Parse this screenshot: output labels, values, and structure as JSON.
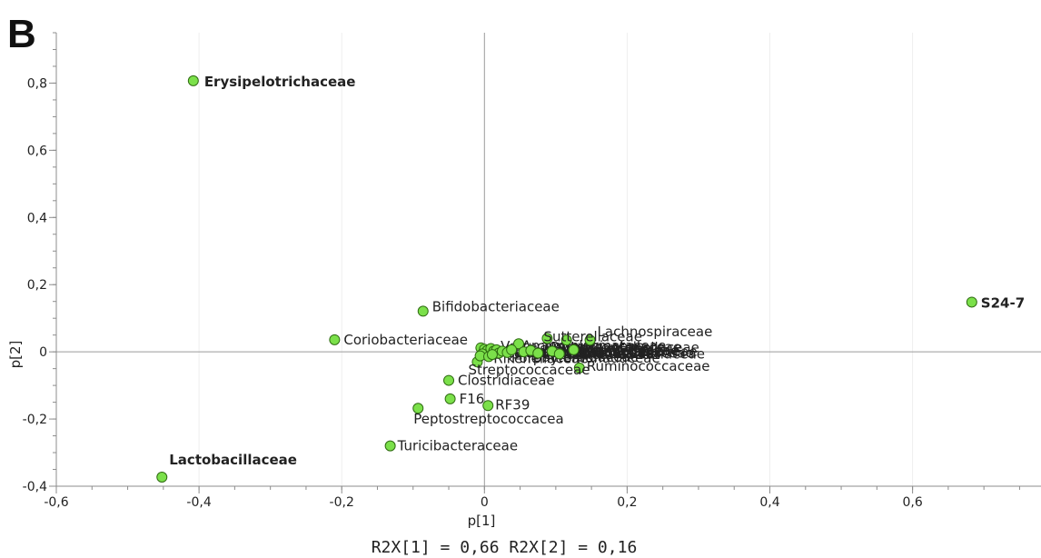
{
  "panel_label": "B",
  "footer": "R2X[1] = 0,66 R2X[2] = 0,16",
  "colors": {
    "point_fill": "#7be04a",
    "point_stroke": "#2f6b12"
  },
  "chart_data": {
    "type": "scatter",
    "title": "",
    "xlabel": "p[1]",
    "ylabel": "p[2]",
    "xlim": [
      -0.6,
      0.78
    ],
    "ylim": [
      -0.4,
      0.95
    ],
    "xticks": [
      -0.6,
      -0.4,
      -0.2,
      0,
      0.2,
      0.4,
      0.6
    ],
    "xtick_labels": [
      "-0,6",
      "-0,4",
      "-0,2",
      "0",
      "0,2",
      "0,4",
      "0,6"
    ],
    "yticks": [
      -0.4,
      -0.2,
      0,
      0.2,
      0.4,
      0.6,
      0.8
    ],
    "ytick_labels": [
      "-0,4",
      "-0,2",
      "0",
      "0,2",
      "0,4",
      "0,6",
      "0,8"
    ],
    "grid": "zero lines and vertical gridlines at major x ticks",
    "points": [
      {
        "label": "Erysipelotrichaceae",
        "x": -0.408,
        "y": 0.807,
        "bold": true
      },
      {
        "label": "S24-7",
        "x": 0.683,
        "y": 0.148,
        "bold": true
      },
      {
        "label": "Lactobacillaceae",
        "x": -0.452,
        "y": -0.373,
        "bold": true
      },
      {
        "label": "Bifidobacteriaceae",
        "x": -0.086,
        "y": 0.121,
        "bold": false
      },
      {
        "label": "Coriobacteriaceae",
        "x": -0.21,
        "y": 0.036,
        "bold": false
      },
      {
        "label": "Clostridiaceae",
        "x": -0.05,
        "y": -0.085,
        "bold": false
      },
      {
        "label": "F16",
        "x": -0.048,
        "y": -0.14,
        "bold": false
      },
      {
        "label": "RF39",
        "x": 0.005,
        "y": -0.16,
        "bold": false
      },
      {
        "label": "Peptostreptococcacea",
        "x": -0.093,
        "y": -0.168,
        "bold": false
      },
      {
        "label": "Turicibacteraceae",
        "x": -0.132,
        "y": -0.28,
        "bold": false
      },
      {
        "label": "Ruminococcaceae",
        "x": 0.133,
        "y": -0.048,
        "bold": false
      },
      {
        "label": "Sutterellaceae",
        "x": 0.088,
        "y": 0.04,
        "bold": false
      },
      {
        "label": "Lachnospiraceae",
        "x": 0.148,
        "y": 0.035,
        "bold": false
      },
      {
        "label": "Streptococcaceae",
        "x": -0.01,
        "y": -0.03,
        "bold": false
      },
      {
        "label": "",
        "x": 0.115,
        "y": 0.035,
        "bold": false
      },
      {
        "label": "",
        "x": 0.048,
        "y": 0.024,
        "bold": false
      },
      {
        "label": "",
        "x": -0.005,
        "y": 0.012,
        "bold": false
      },
      {
        "label": "",
        "x": 0.0,
        "y": 0.008,
        "bold": false
      },
      {
        "label": "",
        "x": 0.004,
        "y": 0.004,
        "bold": false
      },
      {
        "label": "",
        "x": 0.009,
        "y": 0.01,
        "bold": false
      },
      {
        "label": "",
        "x": 0.013,
        "y": 0.002,
        "bold": false
      },
      {
        "label": "",
        "x": 0.017,
        "y": 0.006,
        "bold": false
      },
      {
        "label": "",
        "x": 0.02,
        "y": -0.004,
        "bold": false
      },
      {
        "label": "",
        "x": -0.003,
        "y": -0.006,
        "bold": false
      },
      {
        "label": "",
        "x": -0.006,
        "y": -0.012,
        "bold": false
      },
      {
        "label": "",
        "x": 0.006,
        "y": -0.014,
        "bold": false
      },
      {
        "label": "",
        "x": 0.011,
        "y": -0.008,
        "bold": false
      },
      {
        "label": "",
        "x": 0.025,
        "y": 0.002,
        "bold": false
      },
      {
        "label": "",
        "x": 0.032,
        "y": -0.002,
        "bold": false
      },
      {
        "label": "",
        "x": 0.038,
        "y": 0.006,
        "bold": false
      },
      {
        "label": "",
        "x": 0.055,
        "y": 0.0,
        "bold": false
      },
      {
        "label": "",
        "x": 0.065,
        "y": 0.004,
        "bold": false
      },
      {
        "label": "",
        "x": 0.075,
        "y": -0.004,
        "bold": false
      },
      {
        "label": "",
        "x": 0.095,
        "y": 0.002,
        "bold": false
      },
      {
        "label": "",
        "x": 0.105,
        "y": -0.006,
        "bold": false
      },
      {
        "label": "",
        "x": 0.125,
        "y": 0.006,
        "bold": false
      }
    ],
    "clutter_labels": [
      {
        "text": "Alcaligenaceae",
        "x": 0.005,
        "y": -0.002
      },
      {
        "text": "Coxiellaceae",
        "x": 0.02,
        "y": 0.004
      },
      {
        "text": "Desulfovibrionaceae",
        "x": 0.035,
        "y": -0.004
      },
      {
        "text": "Enterobacteriaceae",
        "x": 0.055,
        "y": 0.002
      },
      {
        "text": "Peptococcaceae",
        "x": 0.075,
        "y": -0.002
      },
      {
        "text": "Mogibacteriaceae",
        "x": 0.095,
        "y": 0.003
      },
      {
        "text": "Dehalobacteriaceae",
        "x": 0.11,
        "y": -0.006
      },
      {
        "text": "Prevotellaceae",
        "x": 0.125,
        "y": 0.005
      },
      {
        "text": "Rikenellaceae",
        "x": 0.005,
        "y": -0.02
      },
      {
        "text": "Porphyromonadaceae",
        "x": 0.03,
        "y": -0.018
      },
      {
        "text": "Bacteroidaceae",
        "x": 0.06,
        "y": -0.016
      },
      {
        "text": "Paraprevotellaceae",
        "x": 0.085,
        "y": 0.014
      },
      {
        "text": "Christensenellaceae",
        "x": 0.1,
        "y": 0.012
      },
      {
        "text": "Verrucomicrobiaceae",
        "x": 0.015,
        "y": 0.016
      },
      {
        "text": "Anaeroplasmataceae",
        "x": 0.045,
        "y": 0.018
      },
      {
        "text": "Helicobacteraceae",
        "x": 0.06,
        "y": -0.008
      },
      {
        "text": "Odoribacteraceae",
        "x": 0.12,
        "y": 0.0
      },
      {
        "text": "Barnesiellaceae",
        "x": 0.135,
        "y": -0.004
      }
    ]
  }
}
